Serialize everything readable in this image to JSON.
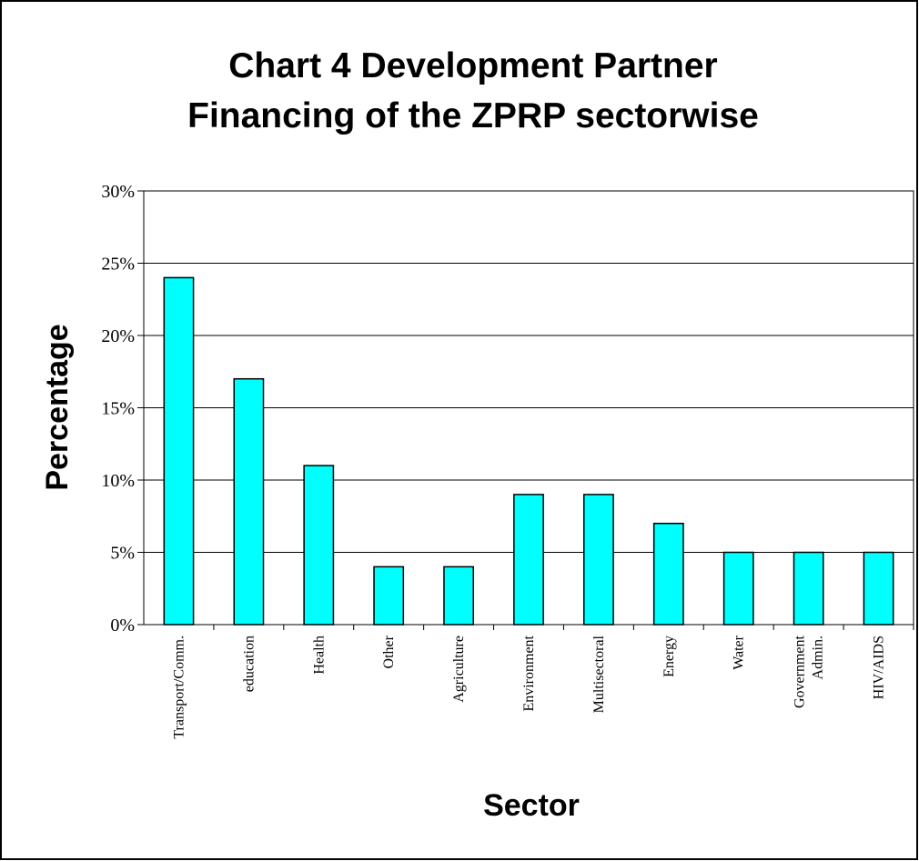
{
  "chart_data": {
    "type": "bar",
    "title": [
      "Chart 4 Development Partner",
      "Financing of the ZPRP sectorwise"
    ],
    "xlabel": "Sector",
    "ylabel": "Percentage",
    "ylim": [
      0,
      30
    ],
    "yticks": [
      0,
      5,
      10,
      15,
      20,
      25,
      30
    ],
    "ytick_labels": [
      "0%",
      "5%",
      "10%",
      "15%",
      "20%",
      "25%",
      "30%"
    ],
    "grid": true,
    "legend": "none",
    "categories": [
      [
        "Transport/Comm."
      ],
      [
        "education"
      ],
      [
        "Health"
      ],
      [
        "Other"
      ],
      [
        "Agriculture"
      ],
      [
        "Environment"
      ],
      [
        "Multisectoral"
      ],
      [
        "Energy"
      ],
      [
        "Water"
      ],
      [
        "Government",
        "Admin."
      ],
      [
        "HIV/AIDS"
      ]
    ],
    "values": [
      24,
      17,
      11,
      4,
      4,
      9,
      9,
      7,
      5,
      5,
      5
    ],
    "colors": {
      "bar": "#00ffff",
      "bar_stroke": "#000000",
      "grid": "#000000",
      "frame": "#000000"
    }
  }
}
